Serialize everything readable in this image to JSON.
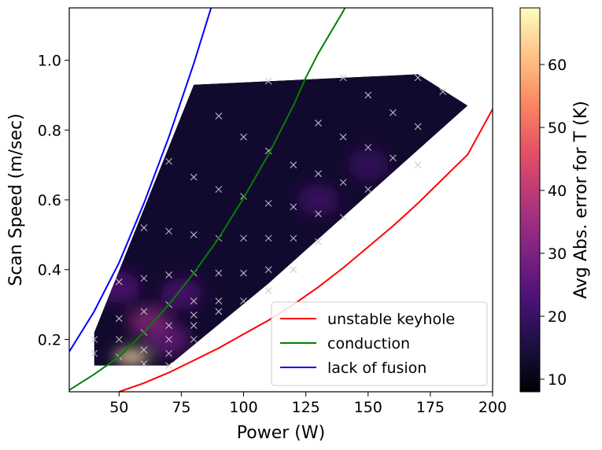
{
  "chart_data": {
    "type": "heatmap",
    "xlabel": "Power (W)",
    "ylabel": "Scan Speed (m/sec)",
    "xlim": [
      30,
      200
    ],
    "ylim": [
      0.05,
      1.15
    ],
    "xticks": [
      "50",
      "75",
      "100",
      "125",
      "150",
      "175",
      "200"
    ],
    "yticks": [
      "0.2",
      "0.4",
      "0.6",
      "0.8",
      "1.0"
    ],
    "colorbar": {
      "label": "Avg Abs. error for T (K)",
      "range": [
        8,
        69
      ],
      "ticks": [
        "10",
        "20",
        "30",
        "40",
        "50",
        "60"
      ],
      "colors": [
        "#000004",
        "#1c1044",
        "#4f127b",
        "#812581",
        "#b5367a",
        "#e55064",
        "#fb8761",
        "#fec287",
        "#fcfdbf"
      ]
    },
    "region_outline": [
      [
        40,
        0.125
      ],
      [
        40,
        0.22
      ],
      [
        80,
        0.93
      ],
      [
        170,
        0.96
      ],
      [
        190,
        0.87
      ],
      [
        110,
        0.36
      ],
      [
        70,
        0.125
      ]
    ],
    "hotspots": [
      {
        "x": 55,
        "y": 0.15,
        "value": 65
      },
      {
        "x": 62,
        "y": 0.25,
        "value": 33
      },
      {
        "x": 70,
        "y": 0.2,
        "value": 28
      },
      {
        "x": 50,
        "y": 0.35,
        "value": 25
      },
      {
        "x": 75,
        "y": 0.33,
        "value": 24
      },
      {
        "x": 130,
        "y": 0.6,
        "value": 21
      },
      {
        "x": 150,
        "y": 0.7,
        "value": 20
      }
    ],
    "samples": [
      [
        40,
        0.16
      ],
      [
        40,
        0.2
      ],
      [
        50,
        0.15
      ],
      [
        50,
        0.2
      ],
      [
        50,
        0.26
      ],
      [
        50,
        0.365
      ],
      [
        60,
        0.13
      ],
      [
        60,
        0.17
      ],
      [
        60,
        0.22
      ],
      [
        60,
        0.28
      ],
      [
        60,
        0.375
      ],
      [
        60,
        0.52
      ],
      [
        70,
        0.125
      ],
      [
        70,
        0.16
      ],
      [
        70,
        0.2
      ],
      [
        70,
        0.24
      ],
      [
        70,
        0.3
      ],
      [
        70,
        0.385
      ],
      [
        70,
        0.51
      ],
      [
        70,
        0.71
      ],
      [
        80,
        0.2
      ],
      [
        80,
        0.24
      ],
      [
        80,
        0.27
      ],
      [
        80,
        0.31
      ],
      [
        80,
        0.39
      ],
      [
        80,
        0.5
      ],
      [
        80,
        0.665
      ],
      [
        90,
        0.28
      ],
      [
        90,
        0.31
      ],
      [
        90,
        0.39
      ],
      [
        90,
        0.49
      ],
      [
        90,
        0.63
      ],
      [
        90,
        0.84
      ],
      [
        100,
        0.31
      ],
      [
        100,
        0.39
      ],
      [
        100,
        0.49
      ],
      [
        100,
        0.61
      ],
      [
        100,
        0.78
      ],
      [
        110,
        0.34
      ],
      [
        110,
        0.4
      ],
      [
        110,
        0.49
      ],
      [
        110,
        0.59
      ],
      [
        110,
        0.74
      ],
      [
        110,
        0.94
      ],
      [
        120,
        0.4
      ],
      [
        120,
        0.49
      ],
      [
        120,
        0.58
      ],
      [
        120,
        0.7
      ],
      [
        130,
        0.48
      ],
      [
        130,
        0.56
      ],
      [
        130,
        0.675
      ],
      [
        130,
        0.82
      ],
      [
        140,
        0.55
      ],
      [
        140,
        0.65
      ],
      [
        140,
        0.78
      ],
      [
        140,
        0.95
      ],
      [
        150,
        0.63
      ],
      [
        150,
        0.75
      ],
      [
        150,
        0.9
      ],
      [
        160,
        0.72
      ],
      [
        160,
        0.85
      ],
      [
        170,
        0.7
      ],
      [
        170,
        0.81
      ],
      [
        170,
        0.95
      ],
      [
        180,
        0.91
      ]
    ],
    "series": [
      {
        "name": "unstable keyhole",
        "color": "#ff0000",
        "x": [
          50,
          60,
          70,
          80,
          90,
          100,
          110,
          120,
          130,
          140,
          150,
          160,
          170,
          180,
          190,
          200
        ],
        "y": [
          0.05,
          0.075,
          0.105,
          0.14,
          0.175,
          0.215,
          0.255,
          0.3,
          0.35,
          0.405,
          0.465,
          0.525,
          0.59,
          0.66,
          0.73,
          0.86
        ]
      },
      {
        "name": "conduction",
        "color": "#008000",
        "x": [
          30,
          40,
          50,
          60,
          70,
          80,
          90,
          100,
          110,
          120,
          125,
          130,
          140,
          148
        ],
        "y": [
          0.055,
          0.1,
          0.15,
          0.22,
          0.3,
          0.39,
          0.49,
          0.605,
          0.73,
          0.87,
          0.95,
          1.02,
          1.14,
          1.25
        ]
      },
      {
        "name": "lack of fusion",
        "color": "#0000ff",
        "x": [
          30,
          40,
          50,
          60,
          70,
          80,
          90
        ],
        "y": [
          0.165,
          0.28,
          0.42,
          0.59,
          0.78,
          0.99,
          1.22
        ]
      }
    ],
    "legend": {
      "location": "lower right",
      "entries": [
        "unstable keyhole",
        "conduction",
        "lack of fusion"
      ]
    }
  }
}
